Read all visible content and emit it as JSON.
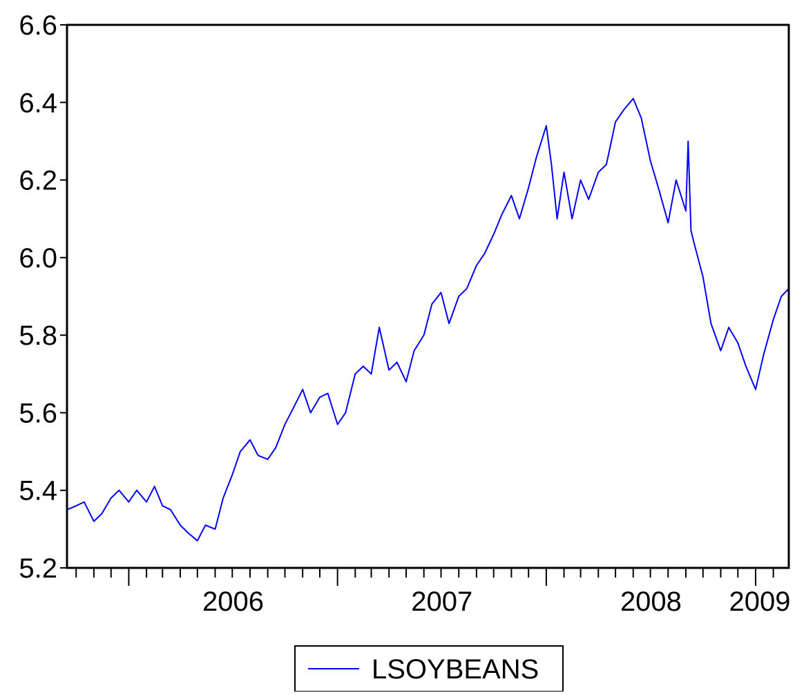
{
  "chart_data": {
    "type": "line",
    "title": "",
    "xlabel": "",
    "ylabel": "",
    "ylim": [
      5.2,
      6.6
    ],
    "yticks": [
      "5.2",
      "5.4",
      "5.6",
      "5.8",
      "6.0",
      "6.2",
      "6.4",
      "6.6"
    ],
    "xlim": [
      "2005-09-15",
      "2009-02-28"
    ],
    "x_tick_labels": [
      "2006",
      "2007",
      "2008",
      "2009"
    ],
    "grid": false,
    "legend_position": "bottom-center",
    "series": [
      {
        "name": "LSOYBEANS",
        "color": "#0000ff",
        "points": [
          [
            "2005-09-15",
            5.35
          ],
          [
            "2005-10-01",
            5.36
          ],
          [
            "2005-10-15",
            5.37
          ],
          [
            "2005-11-01",
            5.32
          ],
          [
            "2005-11-15",
            5.34
          ],
          [
            "2005-12-01",
            5.38
          ],
          [
            "2005-12-15",
            5.4
          ],
          [
            "2006-01-01",
            5.37
          ],
          [
            "2006-01-15",
            5.4
          ],
          [
            "2006-02-01",
            5.37
          ],
          [
            "2006-02-15",
            5.41
          ],
          [
            "2006-03-01",
            5.36
          ],
          [
            "2006-03-15",
            5.35
          ],
          [
            "2006-04-01",
            5.31
          ],
          [
            "2006-04-15",
            5.29
          ],
          [
            "2006-05-01",
            5.27
          ],
          [
            "2006-05-15",
            5.31
          ],
          [
            "2006-06-01",
            5.3
          ],
          [
            "2006-06-15",
            5.38
          ],
          [
            "2006-07-01",
            5.44
          ],
          [
            "2006-07-15",
            5.5
          ],
          [
            "2006-08-01",
            5.53
          ],
          [
            "2006-08-15",
            5.49
          ],
          [
            "2006-09-01",
            5.48
          ],
          [
            "2006-09-15",
            5.51
          ],
          [
            "2006-10-01",
            5.57
          ],
          [
            "2006-10-15",
            5.61
          ],
          [
            "2006-11-01",
            5.66
          ],
          [
            "2006-11-15",
            5.6
          ],
          [
            "2006-12-01",
            5.64
          ],
          [
            "2006-12-15",
            5.65
          ],
          [
            "2007-01-01",
            5.57
          ],
          [
            "2007-01-15",
            5.6
          ],
          [
            "2007-02-01",
            5.7
          ],
          [
            "2007-02-15",
            5.72
          ],
          [
            "2007-03-01",
            5.7
          ],
          [
            "2007-03-15",
            5.82
          ],
          [
            "2007-04-01",
            5.71
          ],
          [
            "2007-04-15",
            5.73
          ],
          [
            "2007-05-01",
            5.68
          ],
          [
            "2007-05-15",
            5.76
          ],
          [
            "2007-06-01",
            5.8
          ],
          [
            "2007-06-15",
            5.88
          ],
          [
            "2007-07-01",
            5.91
          ],
          [
            "2007-07-15",
            5.83
          ],
          [
            "2007-08-01",
            5.9
          ],
          [
            "2007-08-15",
            5.92
          ],
          [
            "2007-09-01",
            5.98
          ],
          [
            "2007-09-15",
            6.01
          ],
          [
            "2007-10-01",
            6.06
          ],
          [
            "2007-10-15",
            6.11
          ],
          [
            "2007-11-01",
            6.16
          ],
          [
            "2007-11-15",
            6.1
          ],
          [
            "2007-12-01",
            6.18
          ],
          [
            "2007-12-15",
            6.26
          ],
          [
            "2008-01-01",
            6.34
          ],
          [
            "2008-01-10",
            6.24
          ],
          [
            "2008-01-20",
            6.1
          ],
          [
            "2008-02-01",
            6.22
          ],
          [
            "2008-02-15",
            6.1
          ],
          [
            "2008-03-01",
            6.2
          ],
          [
            "2008-03-15",
            6.15
          ],
          [
            "2008-04-01",
            6.22
          ],
          [
            "2008-04-15",
            6.24
          ],
          [
            "2008-05-01",
            6.35
          ],
          [
            "2008-05-15",
            6.38
          ],
          [
            "2008-06-01",
            6.41
          ],
          [
            "2008-06-15",
            6.36
          ],
          [
            "2008-07-01",
            6.25
          ],
          [
            "2008-07-15",
            6.18
          ],
          [
            "2008-08-01",
            6.09
          ],
          [
            "2008-08-15",
            6.2
          ],
          [
            "2008-09-01",
            6.12
          ],
          [
            "2008-09-05",
            6.3
          ],
          [
            "2008-09-10",
            6.07
          ],
          [
            "2008-09-15",
            6.04
          ],
          [
            "2008-10-01",
            5.95
          ],
          [
            "2008-10-15",
            5.83
          ],
          [
            "2008-11-01",
            5.76
          ],
          [
            "2008-11-15",
            5.82
          ],
          [
            "2008-12-01",
            5.78
          ],
          [
            "2008-12-15",
            5.72
          ],
          [
            "2009-01-01",
            5.66
          ],
          [
            "2009-01-15",
            5.75
          ],
          [
            "2009-02-01",
            5.84
          ],
          [
            "2009-02-15",
            5.9
          ],
          [
            "2009-02-28",
            5.92
          ]
        ]
      }
    ]
  }
}
